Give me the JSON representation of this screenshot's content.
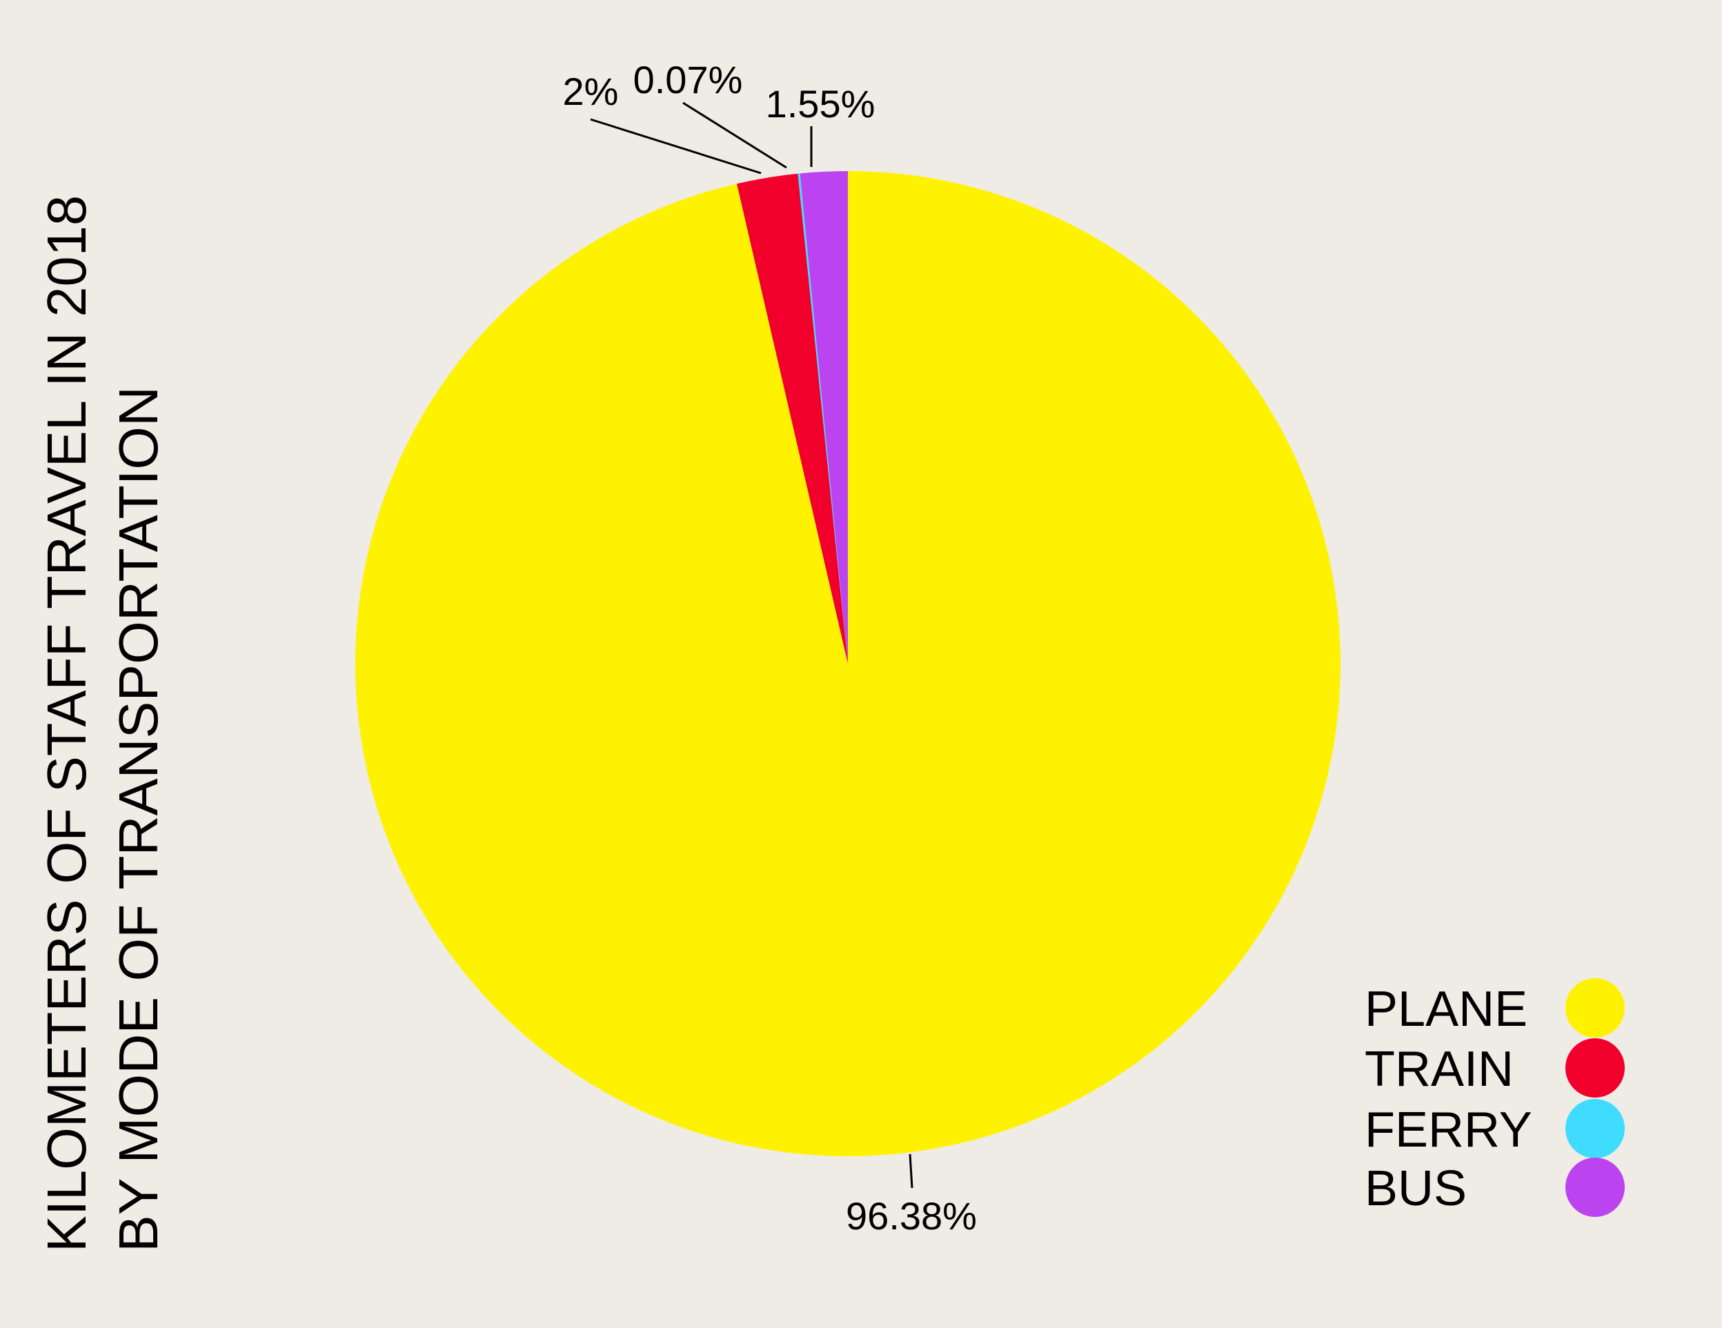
{
  "chart_data": {
    "type": "pie",
    "title": [
      "KILOMETERS OF STAFF TRAVEL IN 2018",
      "BY MODE OF TRANSPORTATION"
    ],
    "slices": [
      {
        "label": "PLANE",
        "value": 96.38,
        "value_label": "96.38%",
        "color": "#fff200"
      },
      {
        "label": "TRAIN",
        "value": 2.0,
        "value_label": "2%",
        "color": "#f0002b"
      },
      {
        "label": "FERRY",
        "value": 0.07,
        "value_label": "0.07%",
        "color": "#40dcff"
      },
      {
        "label": "BUS",
        "value": 1.55,
        "value_label": "1.55%",
        "color": "#bb44f0"
      }
    ],
    "start": "top, clockwise",
    "legend_placement": "bottom-right",
    "background": "#efebe5"
  }
}
